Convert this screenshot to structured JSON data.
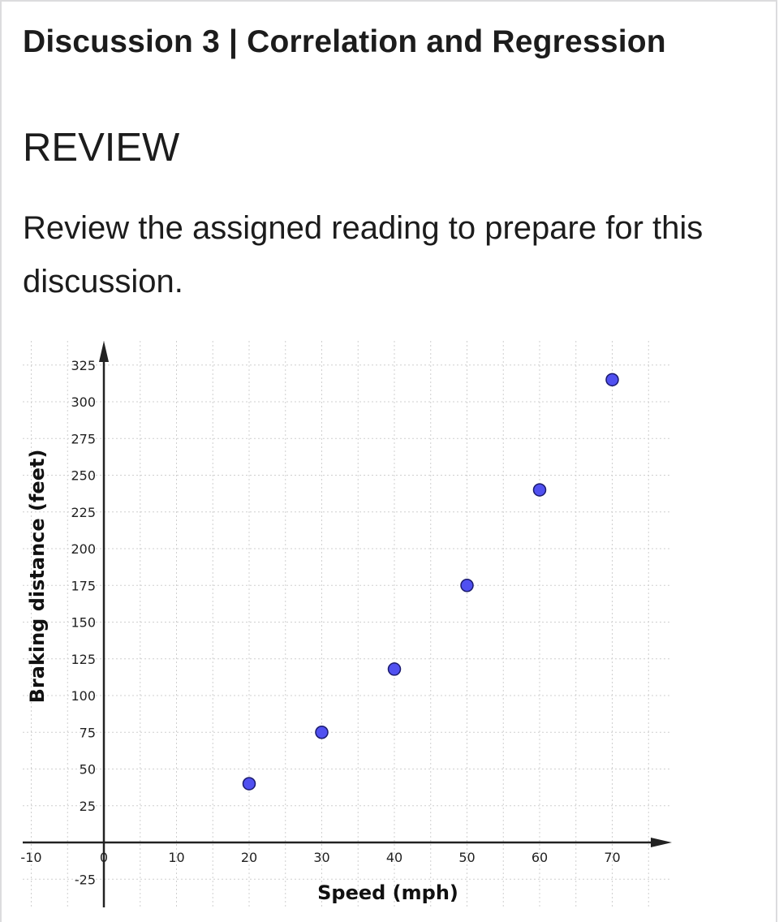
{
  "page": {
    "title": "Discussion 3 | Correlation and Regression",
    "section_heading": "REVIEW",
    "body": "Review the assigned reading to prepare for this discussion."
  },
  "chart_data": {
    "type": "scatter",
    "xlabel": "Speed (mph)",
    "ylabel": "Braking distance (feet)",
    "xlim": [
      -10,
      78
    ],
    "ylim": [
      -43,
      340
    ],
    "x_ticks": [
      -10,
      0,
      10,
      20,
      30,
      40,
      50,
      60,
      70
    ],
    "y_ticks": [
      -25,
      25,
      50,
      75,
      100,
      125,
      150,
      175,
      200,
      225,
      250,
      275,
      300,
      325
    ],
    "grid": true,
    "points": [
      {
        "x": 20,
        "y": 40
      },
      {
        "x": 30,
        "y": 75
      },
      {
        "x": 40,
        "y": 118
      },
      {
        "x": 50,
        "y": 175
      },
      {
        "x": 60,
        "y": 240
      },
      {
        "x": 70,
        "y": 315
      }
    ],
    "marker_color": "#5050f0",
    "marker_edge": "#1a1a6e"
  }
}
